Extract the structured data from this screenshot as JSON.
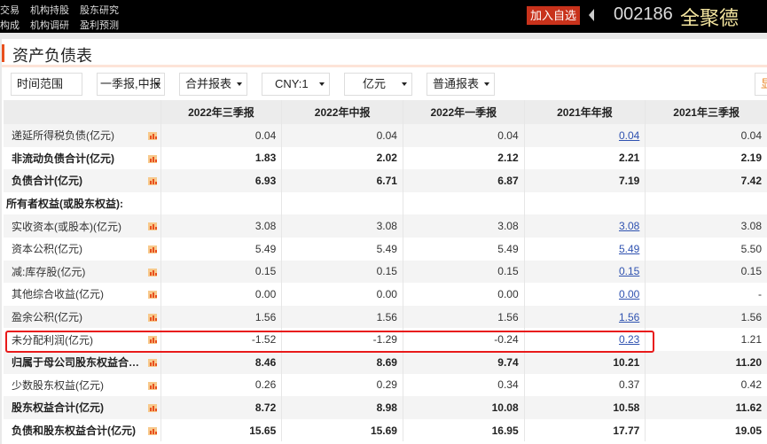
{
  "topbar": {
    "nav_row1": [
      "交易",
      "机构持股",
      "股东研究"
    ],
    "nav_row2": [
      "构成",
      "机构调研",
      "盈利预测"
    ],
    "add_watchlist": "加入自选",
    "stock_code": "002186",
    "stock_name": "全聚德"
  },
  "page": {
    "title": "资产负债表"
  },
  "filters": {
    "time_range": "时间范围",
    "period": "一季报,中报",
    "report_type": "合并报表",
    "currency": "CNY:1",
    "unit": "亿元",
    "format": "普通报表",
    "extra": "显"
  },
  "colors": {
    "accent": "#e8501e",
    "highlight_box": "#e81a1a",
    "link": "#2f52b0"
  },
  "table": {
    "columns": [
      "2022年三季报",
      "2022年中报",
      "2022年一季报",
      "2021年年报",
      "2021年三季报"
    ],
    "rows": [
      {
        "label": "递延所得税负债(亿元)",
        "bold": false,
        "values": [
          "0.04",
          "0.04",
          "0.04",
          "0.04",
          "0.04"
        ],
        "link": true
      },
      {
        "label": "非流动负债合计(亿元)",
        "bold": true,
        "values": [
          "1.83",
          "2.02",
          "2.12",
          "2.21",
          "2.19"
        ],
        "link": false
      },
      {
        "label": "负债合计(亿元)",
        "bold": true,
        "values": [
          "6.93",
          "6.71",
          "6.87",
          "7.19",
          "7.42"
        ],
        "link": false
      },
      {
        "label": "所有者权益(或股东权益):",
        "bold": true,
        "section": true,
        "values": [
          "",
          "",
          "",
          "",
          ""
        ],
        "link": false
      },
      {
        "label": "实收资本(或股本)(亿元)",
        "bold": false,
        "values": [
          "3.08",
          "3.08",
          "3.08",
          "3.08",
          "3.08"
        ],
        "link": true
      },
      {
        "label": "资本公积(亿元)",
        "bold": false,
        "values": [
          "5.49",
          "5.49",
          "5.49",
          "5.49",
          "5.50"
        ],
        "link": true
      },
      {
        "label": "减:库存股(亿元)",
        "bold": false,
        "values": [
          "0.15",
          "0.15",
          "0.15",
          "0.15",
          "0.15"
        ],
        "link": true
      },
      {
        "label": "其他综合收益(亿元)",
        "bold": false,
        "values": [
          "0.00",
          "0.00",
          "0.00",
          "0.00",
          "-"
        ],
        "link": true
      },
      {
        "label": "盈余公积(亿元)",
        "bold": false,
        "values": [
          "1.56",
          "1.56",
          "1.56",
          "1.56",
          "1.56"
        ],
        "link": true
      },
      {
        "label": "未分配利润(亿元)",
        "bold": false,
        "values": [
          "-1.52",
          "-1.29",
          "-0.24",
          "0.23",
          "1.21"
        ],
        "link": true,
        "highlighted": true
      },
      {
        "label": "归属于母公司股东权益合…",
        "bold": true,
        "values": [
          "8.46",
          "8.69",
          "9.74",
          "10.21",
          "11.20"
        ],
        "link": false
      },
      {
        "label": "少数股东权益(亿元)",
        "bold": false,
        "values": [
          "0.26",
          "0.29",
          "0.34",
          "0.37",
          "0.42"
        ],
        "link": false
      },
      {
        "label": "股东权益合计(亿元)",
        "bold": true,
        "values": [
          "8.72",
          "8.98",
          "10.08",
          "10.58",
          "11.62"
        ],
        "link": false
      },
      {
        "label": "负债和股东权益合计(亿元)",
        "bold": true,
        "values": [
          "15.65",
          "15.69",
          "16.95",
          "17.77",
          "19.05"
        ],
        "link": false
      }
    ]
  }
}
